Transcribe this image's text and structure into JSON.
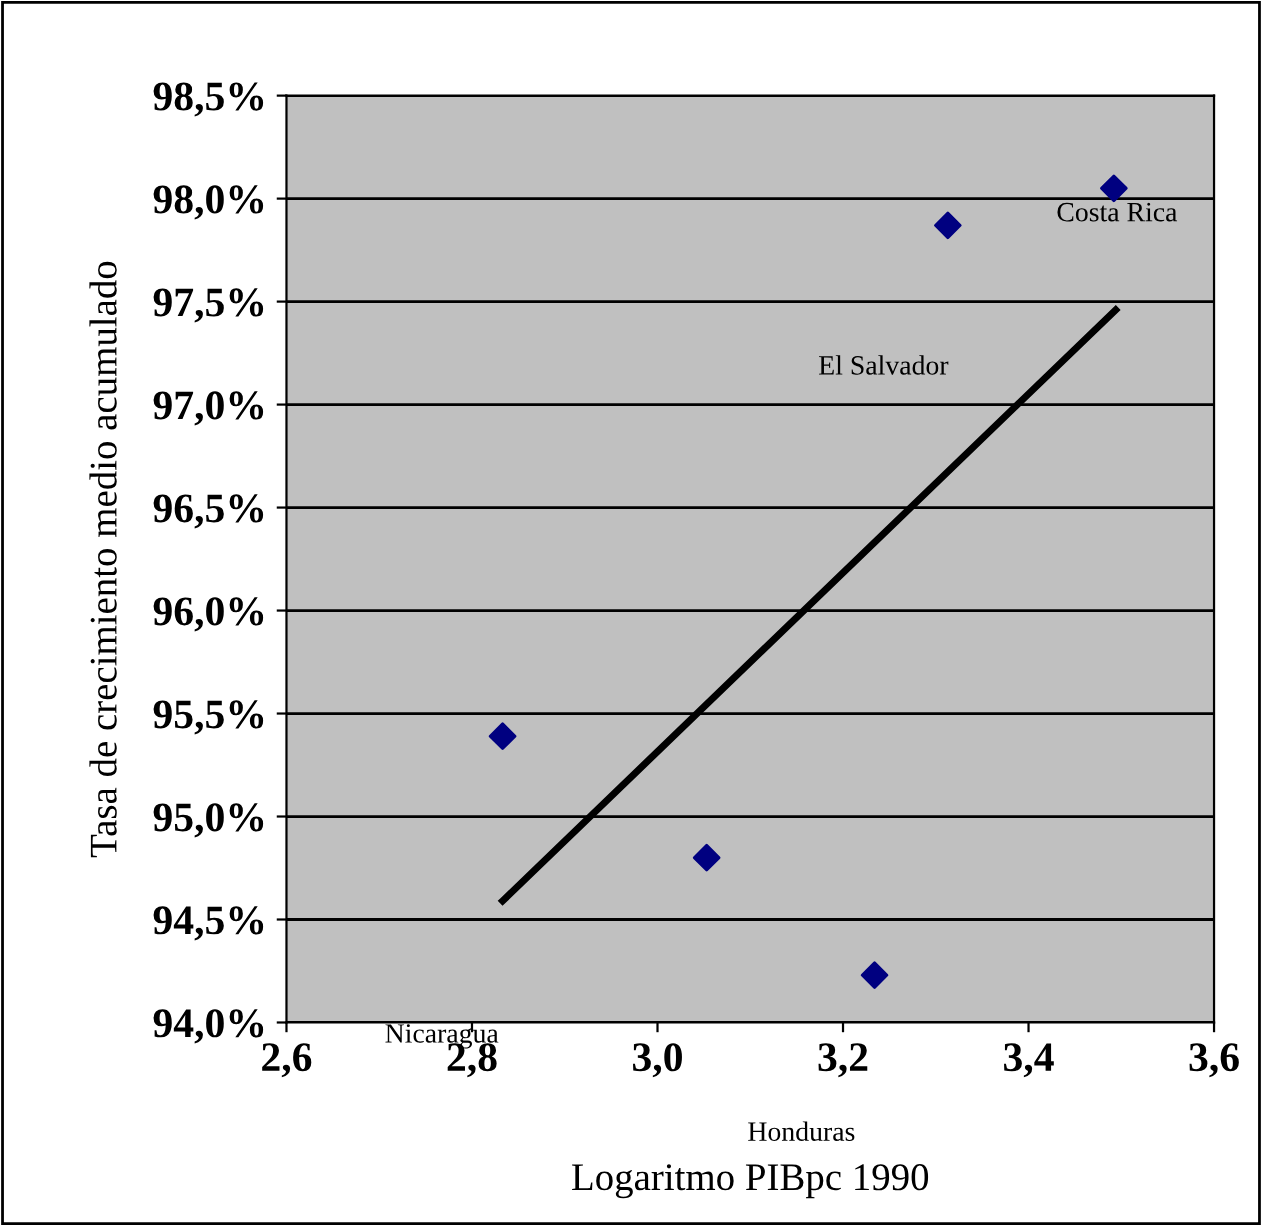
{
  "chart_data": {
    "type": "scatter",
    "xlabel": "Logaritmo PIBpc 1990",
    "ylabel": "Tasa de crecimiento medio acumulado",
    "series": [
      {
        "color": "#000080",
        "marker": "diamond",
        "x": [
          2.833,
          3.053,
          3.234,
          3.313,
          3.492
        ],
        "values": [
          95.39,
          94.8,
          94.23,
          97.87,
          98.05
        ]
      },
      {
        "type": "line",
        "color": "#000000",
        "x": [
          2.833,
          3.494
        ],
        "values": [
          94.59,
          97.46
        ]
      }
    ],
    "annotations": [
      "Costa Rica",
      "El Salvador",
      "Nicaragua",
      "Honduras"
    ],
    "xlim": [
      2.6,
      3.6
    ],
    "xticks": [
      {
        "value": 2.6,
        "label": "2,6"
      },
      {
        "value": 2.8,
        "label": "2,8"
      },
      {
        "value": 3.0,
        "label": "3,0"
      },
      {
        "value": 3.2,
        "label": "3,2"
      },
      {
        "value": 3.4,
        "label": "3,4"
      },
      {
        "value": 3.6,
        "label": "3,6"
      }
    ],
    "ylim": [
      94.0,
      98.5
    ],
    "yticks": [
      {
        "value": 94.0,
        "label": "94,0%"
      },
      {
        "value": 94.5,
        "label": "94,5%"
      },
      {
        "value": 95.0,
        "label": "95,0%"
      },
      {
        "value": 95.5,
        "label": "95,5%"
      },
      {
        "value": 96.0,
        "label": "96,0%"
      },
      {
        "value": 96.5,
        "label": "96,5%"
      },
      {
        "value": 97.0,
        "label": "97,0%"
      },
      {
        "value": 97.5,
        "label": "97,5%"
      },
      {
        "value": 98.0,
        "label": "98,0%"
      },
      {
        "value": 98.5,
        "label": "98,5%"
      }
    ],
    "grid": "y",
    "legend": false
  }
}
